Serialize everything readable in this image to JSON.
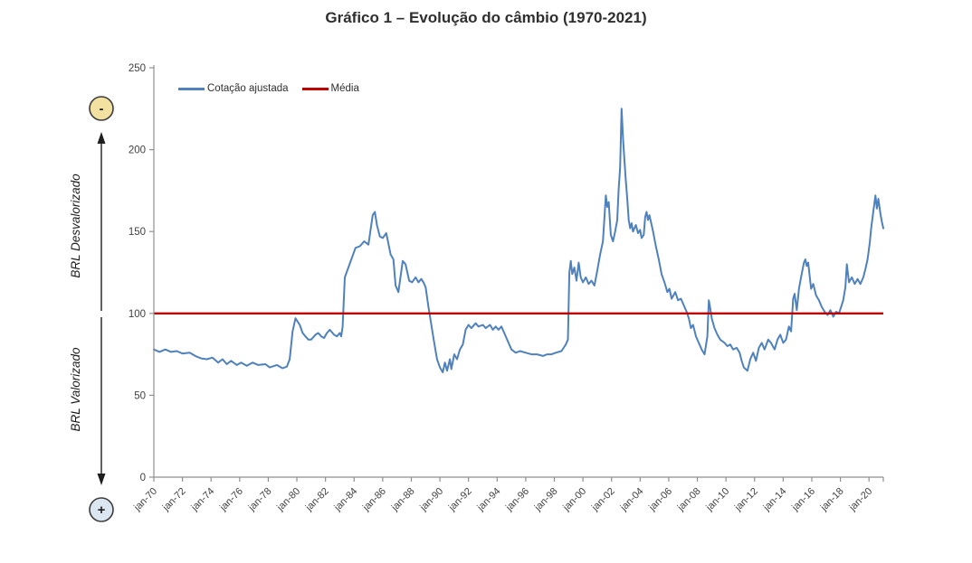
{
  "title": "Gráfico 1 – Evolução do câmbio (1970-2021)",
  "left_annotation": {
    "top_circle_symbol": "-",
    "bottom_circle_symbol": "+",
    "top_axis_label": "BRL Desvalorizado",
    "bottom_axis_label": "BRL Valorizado",
    "top_circle_fill": "#f3e1a2",
    "bottom_circle_fill": "#dce6f1",
    "circle_border": "#3d3d3d"
  },
  "chart_data": {
    "type": "line",
    "title": "Gráfico 1 – Evolução do câmbio (1970-2021)",
    "grid": false,
    "legend_position": "top-left",
    "x_axis": {
      "range_years": [
        1970,
        2021
      ],
      "tick_years": [
        1970,
        1972,
        1974,
        1976,
        1978,
        1980,
        1982,
        1984,
        1986,
        1988,
        1990,
        1992,
        1994,
        1996,
        1998,
        2000,
        2002,
        2004,
        2006,
        2008,
        2010,
        2012,
        2014,
        2016,
        2018,
        2020
      ],
      "tick_labels": [
        "jan-70",
        "jan-72",
        "jan-74",
        "jan-76",
        "jan-78",
        "jan-80",
        "jan-82",
        "jan-84",
        "jan-86",
        "jan-88",
        "jan-90",
        "jan-92",
        "jan-94",
        "jan-96",
        "jan-98",
        "jan-00",
        "jan-02",
        "jan-04",
        "jan-06",
        "jan-08",
        "jan-10",
        "jan-12",
        "jan-14",
        "jan-16",
        "jan-18",
        "jan-20"
      ],
      "end_tick": true
    },
    "y_axis": {
      "range": [
        0,
        250
      ],
      "ticks": [
        0,
        50,
        100,
        150,
        200,
        250
      ]
    },
    "series": [
      {
        "name": "Cotação ajustada",
        "color": "#4f81bd",
        "points": [
          [
            1970,
            78
          ],
          [
            1970.4,
            76.5
          ],
          [
            1970.8,
            78
          ],
          [
            1971.2,
            76.5
          ],
          [
            1971.6,
            77
          ],
          [
            1972,
            75.5
          ],
          [
            1972.5,
            76
          ],
          [
            1972.9,
            74
          ],
          [
            1973.3,
            72.5
          ],
          [
            1973.7,
            72
          ],
          [
            1974.1,
            73
          ],
          [
            1974.5,
            70
          ],
          [
            1974.8,
            72
          ],
          [
            1975.1,
            69
          ],
          [
            1975.4,
            71
          ],
          [
            1975.8,
            68.5
          ],
          [
            1976.1,
            70
          ],
          [
            1976.5,
            68
          ],
          [
            1976.9,
            70
          ],
          [
            1977.3,
            68.5
          ],
          [
            1977.8,
            69
          ],
          [
            1978.1,
            67
          ],
          [
            1978.6,
            68.5
          ],
          [
            1979,
            66.5
          ],
          [
            1979.3,
            67.5
          ],
          [
            1979.5,
            72
          ],
          [
            1979.7,
            89
          ],
          [
            1979.9,
            97
          ],
          [
            1980.2,
            93
          ],
          [
            1980.4,
            88
          ],
          [
            1980.6,
            86
          ],
          [
            1980.8,
            84
          ],
          [
            1981,
            84
          ],
          [
            1981.3,
            87
          ],
          [
            1981.5,
            88
          ],
          [
            1981.7,
            86
          ],
          [
            1981.9,
            85
          ],
          [
            1982.1,
            88
          ],
          [
            1982.3,
            90
          ],
          [
            1982.6,
            87
          ],
          [
            1982.8,
            86
          ],
          [
            1983,
            88
          ],
          [
            1983.1,
            86
          ],
          [
            1983.2,
            92
          ],
          [
            1983.35,
            122
          ],
          [
            1983.6,
            128
          ],
          [
            1984.1,
            140
          ],
          [
            1984.4,
            141
          ],
          [
            1984.7,
            144
          ],
          [
            1985,
            142
          ],
          [
            1985.3,
            160
          ],
          [
            1985.45,
            162
          ],
          [
            1985.6,
            154
          ],
          [
            1985.8,
            147
          ],
          [
            1986,
            146
          ],
          [
            1986.25,
            149
          ],
          [
            1986.55,
            136
          ],
          [
            1986.75,
            133
          ],
          [
            1986.9,
            117
          ],
          [
            1987.1,
            113
          ],
          [
            1987.4,
            132
          ],
          [
            1987.6,
            130
          ],
          [
            1987.85,
            120
          ],
          [
            1988.05,
            119
          ],
          [
            1988.3,
            122
          ],
          [
            1988.5,
            119
          ],
          [
            1988.7,
            121
          ],
          [
            1988.85,
            119
          ],
          [
            1989,
            116
          ],
          [
            1989.2,
            104
          ],
          [
            1989.4,
            93
          ],
          [
            1989.6,
            82
          ],
          [
            1989.8,
            72
          ],
          [
            1990,
            67
          ],
          [
            1990.2,
            64
          ],
          [
            1990.35,
            70
          ],
          [
            1990.5,
            65
          ],
          [
            1990.7,
            72
          ],
          [
            1990.8,
            66
          ],
          [
            1991,
            75
          ],
          [
            1991.2,
            72
          ],
          [
            1991.4,
            78
          ],
          [
            1991.6,
            81
          ],
          [
            1991.8,
            90
          ],
          [
            1992,
            93
          ],
          [
            1992.2,
            91
          ],
          [
            1992.5,
            94
          ],
          [
            1992.7,
            92
          ],
          [
            1993,
            93
          ],
          [
            1993.2,
            91
          ],
          [
            1993.5,
            93
          ],
          [
            1993.7,
            90
          ],
          [
            1993.9,
            92
          ],
          [
            1994.1,
            90
          ],
          [
            1994.3,
            92
          ],
          [
            1994.5,
            88
          ],
          [
            1994.8,
            82
          ],
          [
            1995,
            78
          ],
          [
            1995.3,
            76
          ],
          [
            1995.6,
            77
          ],
          [
            1996,
            76
          ],
          [
            1996.4,
            75
          ],
          [
            1996.8,
            75
          ],
          [
            1997.2,
            74
          ],
          [
            1997.5,
            75
          ],
          [
            1997.8,
            75
          ],
          [
            1998.1,
            76
          ],
          [
            1998.5,
            77
          ],
          [
            1998.8,
            81
          ],
          [
            1998.95,
            84
          ],
          [
            1999.05,
            125
          ],
          [
            1999.15,
            132
          ],
          [
            1999.25,
            124
          ],
          [
            1999.4,
            128
          ],
          [
            1999.55,
            120
          ],
          [
            1999.7,
            131
          ],
          [
            1999.85,
            122
          ],
          [
            2000,
            119
          ],
          [
            2000.2,
            122
          ],
          [
            2000.4,
            118
          ],
          [
            2000.6,
            120
          ],
          [
            2000.8,
            117
          ],
          [
            2001,
            126
          ],
          [
            2001.2,
            136
          ],
          [
            2001.4,
            144
          ],
          [
            2001.6,
            172
          ],
          [
            2001.7,
            165
          ],
          [
            2001.8,
            168
          ],
          [
            2001.95,
            148
          ],
          [
            2002.1,
            144
          ],
          [
            2002.25,
            150
          ],
          [
            2002.4,
            157
          ],
          [
            2002.5,
            176
          ],
          [
            2002.6,
            189
          ],
          [
            2002.7,
            225
          ],
          [
            2002.8,
            207
          ],
          [
            2002.9,
            194
          ],
          [
            2003,
            181
          ],
          [
            2003.1,
            170
          ],
          [
            2003.2,
            157
          ],
          [
            2003.3,
            152
          ],
          [
            2003.4,
            155
          ],
          [
            2003.5,
            150
          ],
          [
            2003.7,
            154
          ],
          [
            2003.85,
            149
          ],
          [
            2004,
            151
          ],
          [
            2004.1,
            146
          ],
          [
            2004.25,
            148
          ],
          [
            2004.35,
            159
          ],
          [
            2004.45,
            162
          ],
          [
            2004.55,
            157
          ],
          [
            2004.65,
            160
          ],
          [
            2004.9,
            150
          ],
          [
            2005.1,
            141
          ],
          [
            2005.3,
            133
          ],
          [
            2005.5,
            124
          ],
          [
            2005.7,
            119
          ],
          [
            2005.9,
            113
          ],
          [
            2006.05,
            115
          ],
          [
            2006.2,
            109
          ],
          [
            2006.45,
            113
          ],
          [
            2006.65,
            108
          ],
          [
            2006.85,
            109
          ],
          [
            2007.1,
            104
          ],
          [
            2007.25,
            101
          ],
          [
            2007.4,
            97
          ],
          [
            2007.55,
            91
          ],
          [
            2007.7,
            93
          ],
          [
            2007.9,
            86
          ],
          [
            2008.1,
            82
          ],
          [
            2008.3,
            78
          ],
          [
            2008.5,
            75
          ],
          [
            2008.7,
            86
          ],
          [
            2008.8,
            108
          ],
          [
            2008.9,
            103
          ],
          [
            2009,
            97
          ],
          [
            2009.2,
            91
          ],
          [
            2009.4,
            87
          ],
          [
            2009.6,
            84
          ],
          [
            2009.9,
            82
          ],
          [
            2010.1,
            80
          ],
          [
            2010.3,
            81
          ],
          [
            2010.5,
            78
          ],
          [
            2010.75,
            79
          ],
          [
            2010.95,
            76
          ],
          [
            2011.1,
            71
          ],
          [
            2011.25,
            67
          ],
          [
            2011.5,
            65
          ],
          [
            2011.7,
            72
          ],
          [
            2011.9,
            76
          ],
          [
            2012.1,
            71
          ],
          [
            2012.3,
            79
          ],
          [
            2012.5,
            82
          ],
          [
            2012.7,
            78
          ],
          [
            2012.95,
            84
          ],
          [
            2013.15,
            82
          ],
          [
            2013.4,
            78
          ],
          [
            2013.6,
            84
          ],
          [
            2013.8,
            87
          ],
          [
            2014,
            82
          ],
          [
            2014.2,
            84
          ],
          [
            2014.4,
            92
          ],
          [
            2014.55,
            89
          ],
          [
            2014.7,
            109
          ],
          [
            2014.8,
            112
          ],
          [
            2014.95,
            102
          ],
          [
            2015.1,
            115
          ],
          [
            2015.25,
            122
          ],
          [
            2015.45,
            131
          ],
          [
            2015.55,
            133
          ],
          [
            2015.65,
            129
          ],
          [
            2015.75,
            131
          ],
          [
            2015.95,
            115
          ],
          [
            2016.1,
            118
          ],
          [
            2016.3,
            111
          ],
          [
            2016.5,
            108
          ],
          [
            2016.7,
            104
          ],
          [
            2016.9,
            101
          ],
          [
            2017.1,
            99
          ],
          [
            2017.3,
            102
          ],
          [
            2017.5,
            98
          ],
          [
            2017.7,
            101
          ],
          [
            2017.9,
            100
          ],
          [
            2018.05,
            104
          ],
          [
            2018.2,
            108
          ],
          [
            2018.35,
            116
          ],
          [
            2018.45,
            130
          ],
          [
            2018.6,
            119
          ],
          [
            2018.8,
            122
          ],
          [
            2019,
            118
          ],
          [
            2019.2,
            121
          ],
          [
            2019.4,
            118
          ],
          [
            2019.6,
            122
          ],
          [
            2019.75,
            127
          ],
          [
            2019.9,
            133
          ],
          [
            2020.05,
            143
          ],
          [
            2020.15,
            152
          ],
          [
            2020.3,
            162
          ],
          [
            2020.45,
            172
          ],
          [
            2020.55,
            164
          ],
          [
            2020.65,
            170
          ],
          [
            2020.8,
            161
          ],
          [
            2020.9,
            156
          ],
          [
            2021,
            152
          ]
        ]
      },
      {
        "name": "Média",
        "color": "#c00000",
        "kind": "constant",
        "value": 100
      }
    ]
  }
}
